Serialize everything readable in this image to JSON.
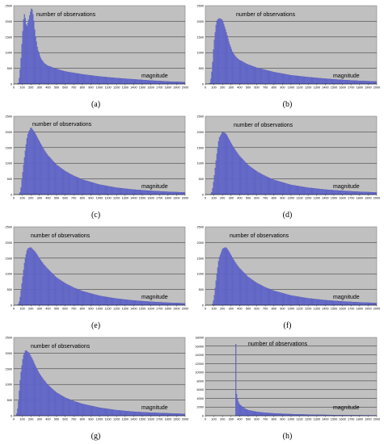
{
  "figure": {
    "panels": [
      {
        "caption": "(a)",
        "series_label": "number of observations",
        "axis_label": "magnitude"
      },
      {
        "caption": "(b)",
        "series_label": "number of observations",
        "axis_label": "magnitude"
      },
      {
        "caption": "(c)",
        "series_label": "number of observations",
        "axis_label": "magnitude"
      },
      {
        "caption": "(d)",
        "series_label": "number of observations",
        "axis_label": "magnitude"
      },
      {
        "caption": "(e)",
        "series_label": "number of observations",
        "axis_label": "magnitude"
      },
      {
        "caption": "(f)",
        "series_label": "number of observations",
        "axis_label": "magnitude"
      },
      {
        "caption": "(g)",
        "series_label": "number of observations",
        "axis_label": "magnitude"
      },
      {
        "caption": "(h)",
        "series_label": "number of observations",
        "axis_label": "magnitude"
      }
    ]
  },
  "chart_data": [
    {
      "type": "bar",
      "title": "",
      "xlabel": "magnitude",
      "ylabel": "number of observations",
      "xlim": [
        0,
        2000
      ],
      "ylim": [
        0,
        2500
      ],
      "grid": true,
      "xticks": [
        0,
        100,
        200,
        300,
        400,
        500,
        600,
        700,
        800,
        900,
        1000,
        1100,
        1200,
        1300,
        1400,
        1500,
        1600,
        1700,
        1800,
        1900,
        2000
      ],
      "yticks": [
        0,
        500,
        1000,
        1500,
        2000,
        2500
      ],
      "bar_color": "#6a6fd0",
      "plot_background": "#c0c0c0",
      "bin_width": 10,
      "profile": {
        "x": [
          0,
          40,
          60,
          80,
          100,
          120,
          130,
          150,
          170,
          190,
          210,
          230,
          250,
          280,
          320,
          360,
          400,
          500,
          600,
          800,
          1000,
          1200,
          1400,
          1600,
          1800,
          2000
        ],
        "y": [
          0,
          0,
          50,
          600,
          1500,
          2250,
          2200,
          1800,
          2000,
          2250,
          2450,
          2150,
          1600,
          1100,
          800,
          650,
          580,
          480,
          400,
          310,
          240,
          190,
          150,
          110,
          80,
          60
        ]
      }
    },
    {
      "type": "bar",
      "title": "",
      "xlabel": "magnitude",
      "ylabel": "number of observations",
      "xlim": [
        0,
        2000
      ],
      "ylim": [
        0,
        2500
      ],
      "grid": true,
      "xticks": [
        0,
        100,
        200,
        300,
        400,
        500,
        600,
        700,
        800,
        900,
        1000,
        1100,
        1200,
        1300,
        1400,
        1500,
        1600,
        1700,
        1800,
        1900,
        2000
      ],
      "yticks": [
        0,
        500,
        1000,
        1500,
        2000,
        2500
      ],
      "bar_color": "#6a6fd0",
      "plot_background": "#c0c0c0",
      "bin_width": 10,
      "profile": {
        "x": [
          0,
          40,
          60,
          80,
          100,
          130,
          160,
          200,
          240,
          280,
          320,
          360,
          400,
          500,
          600,
          800,
          1000,
          1200,
          1400,
          1600,
          1800,
          2000
        ],
        "y": [
          0,
          0,
          50,
          500,
          1300,
          2000,
          2100,
          2050,
          1700,
          1300,
          1000,
          850,
          760,
          620,
          520,
          380,
          280,
          220,
          170,
          130,
          100,
          80
        ]
      }
    },
    {
      "type": "bar",
      "title": "",
      "xlabel": "magnitude",
      "ylabel": "number of observations",
      "xlim": [
        0,
        2000
      ],
      "ylim": [
        0,
        2500
      ],
      "grid": true,
      "xticks": [
        0,
        100,
        200,
        300,
        400,
        500,
        600,
        700,
        800,
        900,
        1000,
        1100,
        1200,
        1300,
        1400,
        1500,
        1600,
        1700,
        1800,
        1900,
        2000
      ],
      "yticks": [
        0,
        500,
        1000,
        1500,
        2000,
        2500
      ],
      "bar_color": "#6a6fd0",
      "plot_background": "#c0c0c0",
      "bin_width": 10,
      "profile": {
        "x": [
          0,
          60,
          80,
          100,
          130,
          160,
          200,
          240,
          280,
          320,
          360,
          400,
          500,
          600,
          700,
          800,
          1000,
          1200,
          1400,
          1600,
          1800,
          2000
        ],
        "y": [
          0,
          0,
          100,
          600,
          1300,
          1900,
          2150,
          2000,
          1800,
          1600,
          1400,
          1250,
          950,
          750,
          600,
          480,
          320,
          220,
          160,
          120,
          90,
          70
        ]
      }
    },
    {
      "type": "bar",
      "title": "",
      "xlabel": "magnitude",
      "ylabel": "number of observations",
      "xlim": [
        0,
        2000
      ],
      "ylim": [
        0,
        2500
      ],
      "grid": true,
      "xticks": [
        0,
        100,
        200,
        300,
        400,
        500,
        600,
        700,
        800,
        900,
        1000,
        1100,
        1200,
        1300,
        1400,
        1500,
        1600,
        1700,
        1800,
        1900,
        2000
      ],
      "yticks": [
        0,
        500,
        1000,
        1500,
        2000,
        2500
      ],
      "bar_color": "#6a6fd0",
      "plot_background": "#c0c0c0",
      "bin_width": 10,
      "profile": {
        "x": [
          0,
          60,
          80,
          100,
          130,
          160,
          200,
          240,
          280,
          320,
          360,
          400,
          500,
          600,
          700,
          800,
          1000,
          1200,
          1400,
          1600,
          1800,
          2000
        ],
        "y": [
          0,
          0,
          100,
          500,
          1200,
          1800,
          2000,
          1950,
          1750,
          1550,
          1380,
          1230,
          940,
          740,
          590,
          470,
          310,
          220,
          160,
          120,
          90,
          70
        ]
      }
    },
    {
      "type": "bar",
      "title": "",
      "xlabel": "magnitude",
      "ylabel": "number of observations",
      "xlim": [
        0,
        2000
      ],
      "ylim": [
        0,
        2500
      ],
      "grid": true,
      "xticks": [
        0,
        100,
        200,
        300,
        400,
        500,
        600,
        700,
        800,
        900,
        1000,
        1100,
        1200,
        1300,
        1400,
        1500,
        1600,
        1700,
        1800,
        1900,
        2000
      ],
      "yticks": [
        0,
        500,
        1000,
        1500,
        2000,
        2500
      ],
      "bar_color": "#6a6fd0",
      "plot_background": "#c0c0c0",
      "bin_width": 10,
      "profile": {
        "x": [
          0,
          50,
          70,
          100,
          130,
          160,
          200,
          250,
          300,
          350,
          400,
          500,
          600,
          700,
          800,
          1000,
          1200,
          1400,
          1600,
          1800,
          2000
        ],
        "y": [
          0,
          0,
          150,
          800,
          1450,
          1800,
          1850,
          1700,
          1500,
          1300,
          1150,
          880,
          700,
          560,
          450,
          300,
          210,
          150,
          110,
          80,
          60
        ]
      }
    },
    {
      "type": "bar",
      "title": "",
      "xlabel": "magnitude",
      "ylabel": "number of observations",
      "xlim": [
        0,
        2000
      ],
      "ylim": [
        0,
        2500
      ],
      "grid": true,
      "xticks": [
        0,
        100,
        200,
        300,
        400,
        500,
        600,
        700,
        800,
        900,
        1000,
        1100,
        1200,
        1300,
        1400,
        1500,
        1600,
        1700,
        1800,
        1900,
        2000
      ],
      "yticks": [
        0,
        500,
        1000,
        1500,
        2000,
        2500
      ],
      "bar_color": "#6a6fd0",
      "plot_background": "#c0c0c0",
      "bin_width": 10,
      "profile": {
        "x": [
          0,
          80,
          100,
          130,
          160,
          200,
          240,
          280,
          320,
          360,
          400,
          500,
          600,
          700,
          800,
          1000,
          1200,
          1400,
          1600,
          1800,
          2000
        ],
        "y": [
          0,
          0,
          200,
          900,
          1500,
          1800,
          1850,
          1700,
          1500,
          1320,
          1180,
          900,
          710,
          570,
          460,
          310,
          220,
          160,
          120,
          90,
          70
        ]
      }
    },
    {
      "type": "bar",
      "title": "",
      "xlabel": "magnitude",
      "ylabel": "number of observations",
      "xlim": [
        0,
        2000
      ],
      "ylim": [
        0,
        2500
      ],
      "grid": true,
      "xticks": [
        0,
        100,
        200,
        300,
        400,
        500,
        600,
        700,
        800,
        900,
        1000,
        1100,
        1200,
        1300,
        1400,
        1500,
        1600,
        1700,
        1800,
        1900,
        2000
      ],
      "yticks": [
        0,
        500,
        1000,
        1500,
        2000,
        2500
      ],
      "bar_color": "#6a6fd0",
      "plot_background": "#c0c0c0",
      "bin_width": 10,
      "profile": {
        "x": [
          0,
          30,
          50,
          80,
          110,
          140,
          180,
          220,
          260,
          300,
          350,
          400,
          500,
          600,
          700,
          800,
          1000,
          1200,
          1400,
          1600,
          1800,
          2000
        ],
        "y": [
          0,
          0,
          300,
          1300,
          1900,
          2100,
          2000,
          1800,
          1550,
          1350,
          1150,
          980,
          740,
          580,
          470,
          380,
          260,
          180,
          130,
          100,
          80,
          60
        ]
      }
    },
    {
      "type": "bar",
      "title": "",
      "xlabel": "magnitude",
      "ylabel": "number of observations",
      "xlim": [
        0,
        2000
      ],
      "ylim": [
        0,
        18000
      ],
      "grid": true,
      "xticks": [
        0,
        100,
        200,
        300,
        400,
        500,
        600,
        700,
        800,
        900,
        1000,
        1100,
        1200,
        1300,
        1400,
        1500,
        1600,
        1700,
        1800,
        1900,
        2000
      ],
      "yticks": [
        0,
        2000,
        4000,
        6000,
        8000,
        10000,
        12000,
        14000,
        16000,
        18000
      ],
      "bar_color": "#6a6fd0",
      "plot_background": "#c0c0c0",
      "bin_width": 10,
      "spike": {
        "x": 350,
        "y": 16500
      },
      "profile": {
        "x": [
          0,
          350,
          360,
          380,
          400,
          450,
          500,
          600,
          700,
          800,
          1000,
          1200,
          1400,
          1600,
          1800,
          2000
        ],
        "y": [
          0,
          0,
          5500,
          3500,
          2600,
          1800,
          1300,
          900,
          700,
          550,
          380,
          270,
          200,
          150,
          110,
          90
        ]
      }
    }
  ]
}
